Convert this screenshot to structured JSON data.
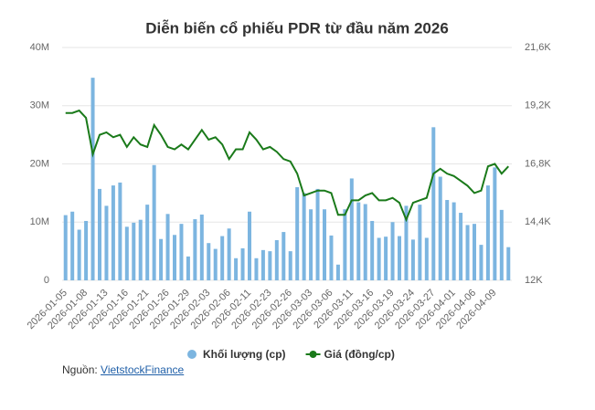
{
  "chart_data": {
    "type": "bar_line",
    "title": "Diễn biến cổ phiếu PDR từ đầu năm 2026",
    "categories": [
      "2026-01-05",
      null,
      null,
      "2026-01-08",
      null,
      null,
      "2026-01-13",
      null,
      null,
      "2026-01-16",
      null,
      null,
      "2026-01-21",
      null,
      null,
      "2026-01-26",
      null,
      null,
      "2026-01-29",
      null,
      null,
      "2026-02-03",
      null,
      null,
      "2026-02-06",
      null,
      null,
      "2026-02-11",
      null,
      null,
      "2026-02-23",
      null,
      null,
      "2026-02-26",
      null,
      null,
      "2026-03-03",
      null,
      null,
      "2026-03-06",
      null,
      null,
      "2026-03-11",
      null,
      null,
      "2026-03-16",
      null,
      null,
      "2026-03-19",
      null,
      null,
      "2026-03-24",
      null,
      null,
      "2026-03-27",
      null,
      null,
      "2026-04-01",
      null,
      null,
      "2026-04-06",
      null,
      null,
      "2026-04-09",
      null,
      null
    ],
    "series": [
      {
        "name": "Khối lượng (cp)",
        "color": "#7cb5e0",
        "type": "bar",
        "axis": "y",
        "values": [
          11200000,
          11800000,
          8700000,
          10200000,
          34800000,
          15700000,
          12800000,
          16300000,
          16800000,
          9200000,
          9900000,
          10400000,
          13000000,
          19800000,
          7100000,
          11400000,
          7800000,
          9700000,
          4100000,
          10500000,
          11300000,
          6400000,
          5400000,
          7600000,
          8900000,
          3800000,
          5500000,
          11800000,
          3800000,
          5200000,
          5000000,
          6900000,
          8300000,
          5000000,
          16000000,
          15000000,
          12200000,
          15700000,
          12200000,
          7700000,
          2700000,
          12200000,
          17500000,
          13400000,
          13100000,
          10200000,
          7300000,
          7500000,
          10000000,
          7600000,
          12800000,
          7000000,
          13000000,
          7300000,
          26300000,
          17800000,
          13800000,
          13400000,
          11600000,
          9500000,
          9700000,
          6100000,
          16300000,
          19400000,
          12100000,
          5700000
        ]
      },
      {
        "name": "Giá (đồng/cp)",
        "color": "#1a7a1a",
        "type": "line",
        "axis": "y2",
        "values": [
          18900,
          18900,
          19000,
          18700,
          17200,
          18000,
          18100,
          17900,
          18000,
          17500,
          17900,
          17600,
          17500,
          18400,
          18000,
          17500,
          17400,
          17600,
          17400,
          17800,
          18200,
          17800,
          17900,
          17600,
          17000,
          17400,
          17400,
          18100,
          17800,
          17400,
          17500,
          17300,
          17000,
          16900,
          16400,
          15500,
          15600,
          15700,
          15700,
          15600,
          14700,
          14700,
          15300,
          15300,
          15500,
          15600,
          15300,
          15300,
          15400,
          15200,
          14500,
          15200,
          15300,
          15400,
          16400,
          16600,
          16400,
          16300,
          16100,
          15900,
          15600,
          15700,
          16700,
          16800,
          16400,
          16700
        ]
      }
    ],
    "ylim": [
      0,
      40000000
    ],
    "yticks": [
      0,
      {
        "value": 10000000,
        "label": "10M"
      },
      {
        "value": 20000000,
        "label": "20M"
      },
      {
        "value": 30000000,
        "label": "30M"
      },
      {
        "value": 40000000,
        "label": "40M"
      }
    ],
    "y2lim": [
      12000,
      21600
    ],
    "y2ticks": [
      {
        "value": 12000,
        "label": "12K"
      },
      {
        "value": 14400,
        "label": "14,4K"
      },
      {
        "value": 16800,
        "label": "16,8K"
      },
      {
        "value": 19200,
        "label": "19,2K"
      },
      {
        "value": 21600,
        "label": "21,6K"
      }
    ],
    "grid": true,
    "legend": "bottom",
    "source_label": "Nguồn:",
    "source_link": "VietstockFinance"
  }
}
